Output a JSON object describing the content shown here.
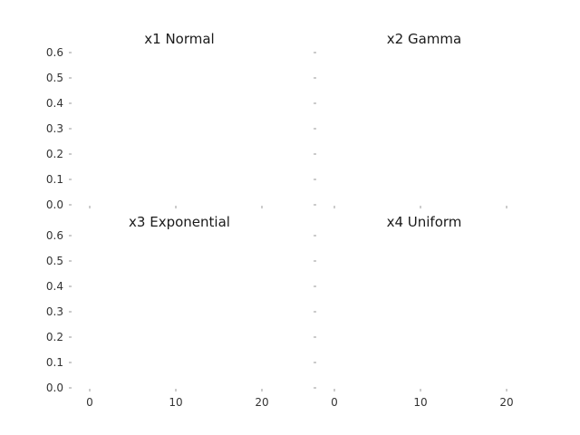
{
  "chart_data": [
    {
      "type": "histogram",
      "title": "x1 Normal",
      "x_ticks": [
        "0",
        "10",
        "20"
      ],
      "y_ticks": [
        "0.0",
        "0.1",
        "0.2",
        "0.3",
        "0.4",
        "0.5",
        "0.6"
      ],
      "xlim": [
        -2,
        22
      ],
      "ylim": [
        0,
        0.6
      ],
      "series": [],
      "grid": false
    },
    {
      "type": "histogram",
      "title": "x2 Gamma",
      "x_ticks": [
        "0",
        "10",
        "20"
      ],
      "y_ticks": [
        "0.0",
        "0.1",
        "0.2",
        "0.3",
        "0.4",
        "0.5",
        "0.6"
      ],
      "xlim": [
        -2,
        22
      ],
      "ylim": [
        0,
        0.6
      ],
      "series": [],
      "grid": false
    },
    {
      "type": "histogram",
      "title": "x3 Exponential",
      "x_ticks": [
        "0",
        "10",
        "20"
      ],
      "y_ticks": [
        "0.0",
        "0.1",
        "0.2",
        "0.3",
        "0.4",
        "0.5",
        "0.6"
      ],
      "xlim": [
        -2,
        22
      ],
      "ylim": [
        0,
        0.6
      ],
      "series": [],
      "grid": false
    },
    {
      "type": "histogram",
      "title": "x4 Uniform",
      "x_ticks": [
        "0",
        "10",
        "20"
      ],
      "y_ticks": [
        "0.0",
        "0.1",
        "0.2",
        "0.3",
        "0.4",
        "0.5",
        "0.6"
      ],
      "xlim": [
        -2,
        22
      ],
      "ylim": [
        0,
        0.6
      ],
      "series": [],
      "grid": false
    }
  ]
}
